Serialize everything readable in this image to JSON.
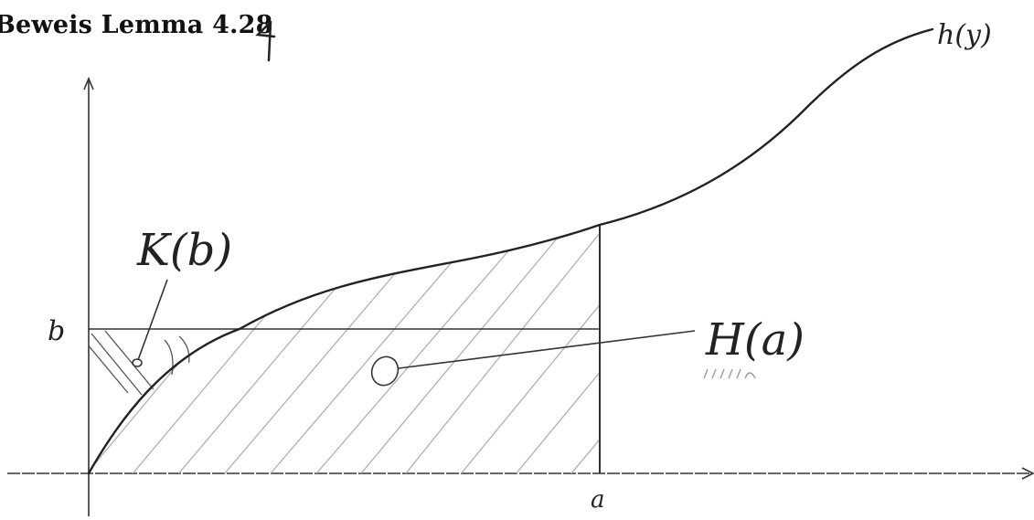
{
  "title": "Beweis Lemma 4.28",
  "labels": {
    "curve": "h(y)",
    "k_region": "K(b)",
    "h_region": "H(a)",
    "y_tick": "b",
    "x_tick": "a"
  },
  "colors": {
    "ink": "#222222",
    "axis": "#333333",
    "hatch": "#b0b0b0"
  }
}
